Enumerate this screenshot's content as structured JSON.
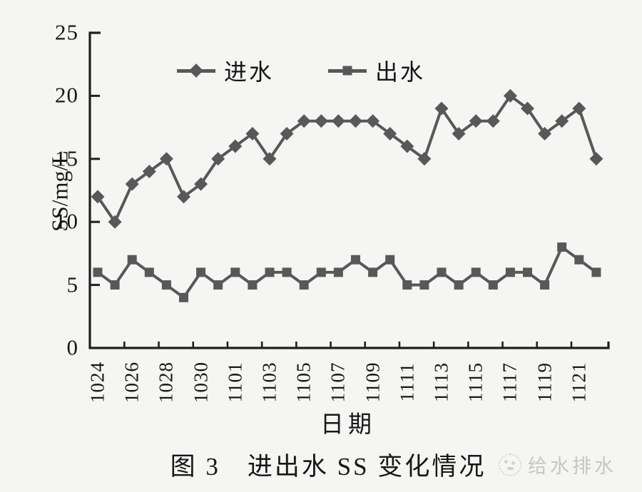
{
  "colors": {
    "ink": "#1f1f1f",
    "line": "#585858",
    "text": "#171717",
    "background": "#f5f5f3",
    "watermark": "#c7c6c3"
  },
  "watermark": {
    "text": "给水排水",
    "logo": "dotted-circle-logo"
  },
  "chart_data": {
    "type": "line",
    "title": "图 3　进出水 SS 变化情况",
    "xlabel": "日期",
    "ylabel": "SS/mg/L",
    "ylim": [
      0,
      25
    ],
    "yticks": [
      0,
      5,
      10,
      15,
      20,
      25
    ],
    "grid": false,
    "legend_position": "top-inside",
    "x": [
      "1024",
      "1025",
      "1026",
      "1027",
      "1028",
      "1029",
      "1030",
      "1031",
      "1101",
      "1102",
      "1103",
      "1104",
      "1105",
      "1106",
      "1107",
      "1108",
      "1109",
      "1110",
      "1111",
      "1112",
      "1113",
      "1114",
      "1115",
      "1116",
      "1117",
      "1118",
      "1119",
      "1120",
      "1121",
      "1122"
    ],
    "xtick_labels": [
      "1024",
      "1026",
      "1028",
      "1030",
      "1101",
      "1103",
      "1105",
      "1107",
      "1109",
      "1111",
      "1113",
      "1115",
      "1117",
      "1119",
      "1121"
    ],
    "series": [
      {
        "name": "进水",
        "key": "influent",
        "marker": "diamond",
        "values": [
          12,
          10,
          13,
          14,
          15,
          12,
          13,
          15,
          16,
          17,
          15,
          17,
          18,
          18,
          18,
          18,
          18,
          17,
          16,
          15,
          19,
          17,
          18,
          18,
          20,
          19,
          17,
          18,
          19,
          15
        ]
      },
      {
        "name": "出水",
        "key": "effluent",
        "marker": "square",
        "values": [
          6,
          5,
          7,
          6,
          5,
          4,
          6,
          5,
          6,
          5,
          6,
          6,
          5,
          6,
          6,
          7,
          6,
          7,
          5,
          5,
          6,
          5,
          6,
          5,
          6,
          6,
          5,
          8,
          7,
          6
        ]
      }
    ]
  }
}
